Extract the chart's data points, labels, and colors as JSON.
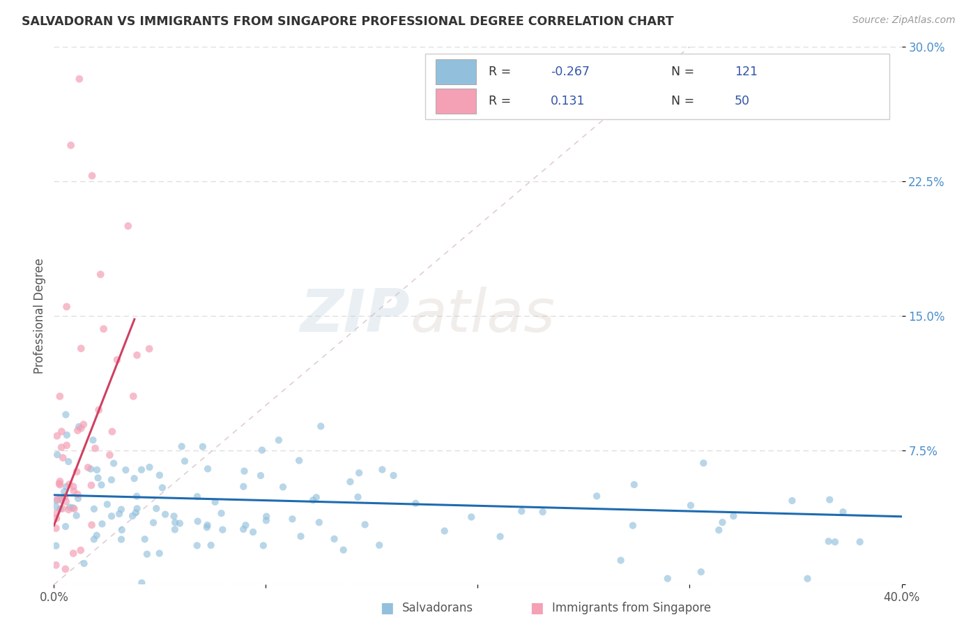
{
  "title": "SALVADORAN VS IMMIGRANTS FROM SINGAPORE PROFESSIONAL DEGREE CORRELATION CHART",
  "source": "Source: ZipAtlas.com",
  "ylabel": "Professional Degree",
  "x_min": 0.0,
  "x_max": 0.4,
  "y_min": 0.0,
  "y_max": 0.3,
  "x_ticks": [
    0.0,
    0.1,
    0.2,
    0.3,
    0.4
  ],
  "x_tick_labels": [
    "0.0%",
    "",
    "",
    "",
    "40.0%"
  ],
  "y_ticks": [
    0.0,
    0.075,
    0.15,
    0.225,
    0.3
  ],
  "y_tick_labels": [
    "",
    "7.5%",
    "15.0%",
    "22.5%",
    "30.0%"
  ],
  "color_blue": "#92C0DC",
  "color_pink": "#F4A0B5",
  "color_blue_line": "#1E6BB0",
  "color_pink_line": "#D04060",
  "color_diagonal": "#D8C0C8",
  "watermark_zip": "ZIP",
  "watermark_atlas": "atlas",
  "R1": -0.267,
  "N1": 121,
  "R2": 0.131,
  "N2": 50,
  "background_color": "#FFFFFF",
  "grid_color": "#DCDCDC"
}
